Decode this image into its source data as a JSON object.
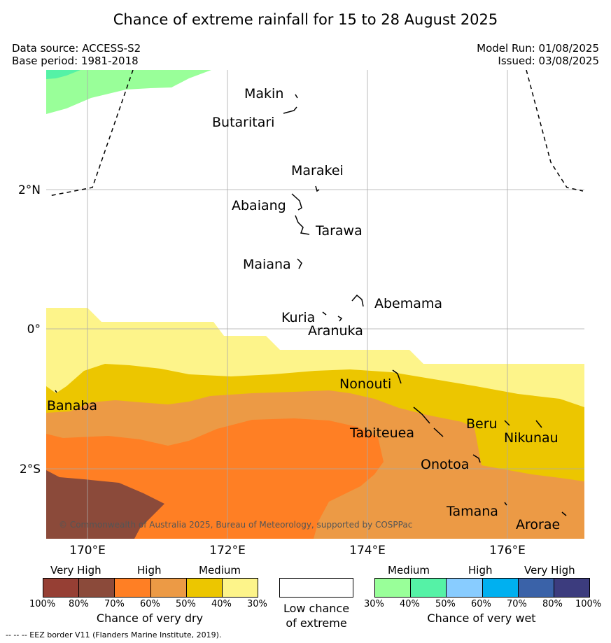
{
  "title": "Chance of extreme rainfall for 15 to 28 August 2025",
  "meta": {
    "data_source": "Data source: ACCESS-S2",
    "base_period": "Base period: 1981-2018",
    "model_run": "Model Run: 01/08/2025",
    "issued": "Issued: 03/08/2025"
  },
  "map": {
    "lon_ticks": [
      "170°E",
      "172°E",
      "174°E",
      "176°E"
    ],
    "lat_ticks": [
      "2°N",
      "0°",
      "2°S"
    ],
    "copyright": "© Commonwealth of Australia 2025, Bureau of Meteorology, supported by COSPPac",
    "places": [
      "Makin",
      "Butaritari",
      "Marakei",
      "Abaiang",
      "Tarawa",
      "Maiana",
      "Abemama",
      "Kuria",
      "Aranuka",
      "Nonouti",
      "Banaba",
      "Tabiteuea",
      "Beru",
      "Nikunau",
      "Onotoa",
      "Tamana",
      "Arorae"
    ]
  },
  "colors": {
    "very_dry_high": "#8b4a3a",
    "dry_70": "#ff7f24",
    "dry_60": "#ec9a45",
    "dry_50": "#ecc600",
    "dry_40": "#fdf48a",
    "wet_30": "#99ff99",
    "wet_40": "#55f2a6"
  },
  "legend_dry": {
    "headers": [
      "Very High",
      "High",
      "Medium"
    ],
    "ticks": [
      "100%",
      "80%",
      "70%",
      "60%",
      "50%",
      "40%",
      "30%"
    ],
    "colors": [
      "#963f34",
      "#8b4a3a",
      "#ff7f24",
      "#ec9a45",
      "#ecc600",
      "#fdf48a"
    ],
    "title": "Chance of very dry"
  },
  "legend_low": {
    "line1": "Low chance",
    "line2": "of extreme"
  },
  "legend_wet": {
    "headers": [
      "Medium",
      "High",
      "Very High"
    ],
    "ticks": [
      "30%",
      "40%",
      "50%",
      "60%",
      "70%",
      "80%",
      "100%"
    ],
    "colors": [
      "#99ff99",
      "#55f2a6",
      "#88ccff",
      "#00b0f0",
      "#3a62a8",
      "#3c3c7e"
    ],
    "title": "Chance of very wet"
  },
  "footer": "--  --  -- EEZ border V11 (Flanders Marine Institute, 2019)."
}
